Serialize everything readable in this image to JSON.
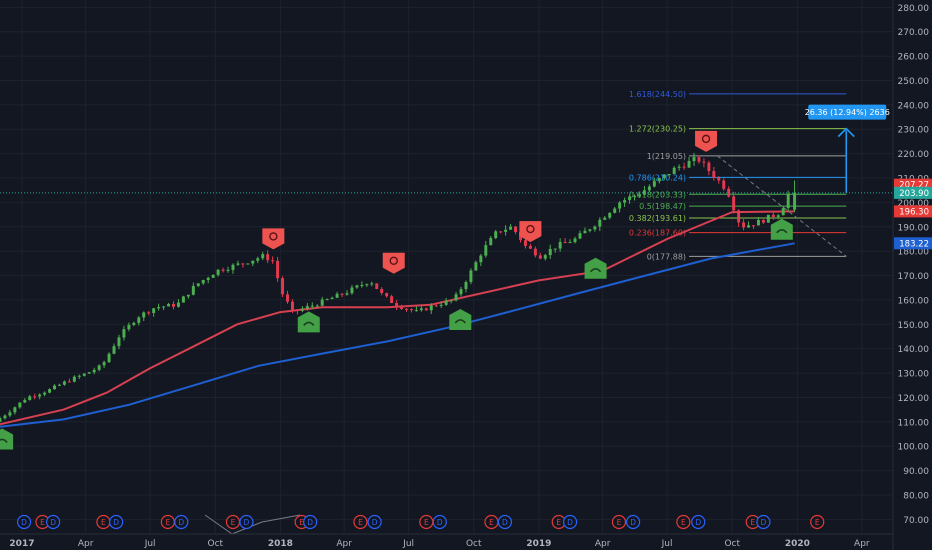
{
  "chart_data": {
    "type": "candlestick",
    "title": "",
    "xlabel": "",
    "ylabel": "",
    "xlim": [
      "2016-12-01",
      "2020-05-15"
    ],
    "ylim": [
      64,
      283
    ],
    "x_ticks": [
      {
        "label": "2017",
        "date": "2017-01-01",
        "bold": true
      },
      {
        "label": "Apr",
        "date": "2017-04-01"
      },
      {
        "label": "Jul",
        "date": "2017-07-01"
      },
      {
        "label": "Oct",
        "date": "2017-10-01"
      },
      {
        "label": "2018",
        "date": "2018-01-01",
        "bold": true
      },
      {
        "label": "Apr",
        "date": "2018-04-01"
      },
      {
        "label": "Jul",
        "date": "2018-07-01"
      },
      {
        "label": "Oct",
        "date": "2018-10-01"
      },
      {
        "label": "2019",
        "date": "2019-01-01",
        "bold": true
      },
      {
        "label": "Apr",
        "date": "2019-04-01"
      },
      {
        "label": "Jul",
        "date": "2019-07-01"
      },
      {
        "label": "Oct",
        "date": "2019-10-01"
      },
      {
        "label": "2020",
        "date": "2020-01-01",
        "bold": true
      },
      {
        "label": "Apr",
        "date": "2020-04-01"
      }
    ],
    "y_ticks": [
      "70.00",
      "80.00",
      "90.00",
      "100.00",
      "110.00",
      "120.00",
      "130.00",
      "140.00",
      "150.00",
      "160.00",
      "170.00",
      "180.00",
      "190.00",
      "200.00",
      "210.00",
      "220.00",
      "230.00",
      "240.00",
      "250.00",
      "260.00",
      "270.00",
      "280.00"
    ],
    "price_anchors": [
      [
        "2016-12-01",
        110
      ],
      [
        "2016-12-20",
        114
      ],
      [
        "2017-01-15",
        120
      ],
      [
        "2017-02-15",
        123
      ],
      [
        "2017-03-15",
        127
      ],
      [
        "2017-04-10",
        130
      ],
      [
        "2017-05-01",
        133
      ],
      [
        "2017-05-25",
        145
      ],
      [
        "2017-06-20",
        153
      ],
      [
        "2017-07-15",
        157
      ],
      [
        "2017-08-15",
        158
      ],
      [
        "2017-09-10",
        166
      ],
      [
        "2017-10-10",
        172
      ],
      [
        "2017-11-15",
        175
      ],
      [
        "2017-12-15",
        178
      ],
      [
        "2017-12-28",
        176
      ],
      [
        "2018-01-10",
        163
      ],
      [
        "2018-01-25",
        155
      ],
      [
        "2018-02-15",
        157
      ],
      [
        "2018-03-15",
        160
      ],
      [
        "2018-04-10",
        163
      ],
      [
        "2018-05-15",
        168
      ],
      [
        "2018-06-01",
        162
      ],
      [
        "2018-06-20",
        158
      ],
      [
        "2018-07-20",
        155
      ],
      [
        "2018-08-15",
        158
      ],
      [
        "2018-09-10",
        160
      ],
      [
        "2018-10-01",
        170
      ],
      [
        "2018-10-20",
        180
      ],
      [
        "2018-11-10",
        188
      ],
      [
        "2018-12-01",
        190
      ],
      [
        "2018-12-20",
        182
      ],
      [
        "2019-01-10",
        178
      ],
      [
        "2019-02-01",
        182
      ],
      [
        "2019-03-01",
        185
      ],
      [
        "2019-04-01",
        192
      ],
      [
        "2019-05-01",
        200
      ],
      [
        "2019-06-01",
        204
      ],
      [
        "2019-06-20",
        208
      ],
      [
        "2019-07-20",
        214
      ],
      [
        "2019-08-20",
        218
      ],
      [
        "2019-09-15",
        210
      ],
      [
        "2019-10-01",
        205
      ],
      [
        "2019-10-20",
        190
      ],
      [
        "2019-11-15",
        192
      ],
      [
        "2019-12-15",
        196
      ],
      [
        "2019-12-27",
        203.9
      ]
    ],
    "last_candle": {
      "date": "2019-12-28",
      "open": 197,
      "high": 209,
      "low": 196,
      "close": 203.9
    },
    "series": [
      {
        "color": "#d64051",
        "points": [
          [
            "2016-12-01",
            109
          ],
          [
            "2017-03-01",
            115
          ],
          [
            "2017-05-01",
            122
          ],
          [
            "2017-07-01",
            132
          ],
          [
            "2017-09-01",
            141
          ],
          [
            "2017-11-01",
            150
          ],
          [
            "2018-01-01",
            155
          ],
          [
            "2018-03-01",
            157
          ],
          [
            "2018-06-01",
            157
          ],
          [
            "2018-08-01",
            158
          ],
          [
            "2018-10-01",
            162
          ],
          [
            "2019-01-01",
            168
          ],
          [
            "2019-04-01",
            172
          ],
          [
            "2019-07-01",
            185
          ],
          [
            "2019-10-01",
            196
          ],
          [
            "2019-12-28",
            196.3
          ]
        ]
      },
      {
        "color": "#1e5fd1",
        "points": [
          [
            "2016-12-01",
            108
          ],
          [
            "2017-03-01",
            111
          ],
          [
            "2017-06-01",
            117
          ],
          [
            "2017-09-01",
            125
          ],
          [
            "2017-12-01",
            133
          ],
          [
            "2018-03-01",
            138
          ],
          [
            "2018-06-01",
            143
          ],
          [
            "2018-09-01",
            149
          ],
          [
            "2018-12-01",
            156
          ],
          [
            "2019-03-01",
            163
          ],
          [
            "2019-06-01",
            170
          ],
          [
            "2019-09-01",
            177
          ],
          [
            "2019-12-28",
            183.22
          ]
        ]
      }
    ],
    "fib_levels": [
      {
        "label": "1.618(244.50)",
        "value": 244.5,
        "color": "#2e5bd8"
      },
      {
        "label": "1.272(230.25)",
        "value": 230.25,
        "color": "#8bc34a"
      },
      {
        "label": "1(219.05)",
        "value": 219.05,
        "color": "#9e9e9e"
      },
      {
        "label": "0.786(210.24)",
        "value": 210.24,
        "color": "#2196f3"
      },
      {
        "label": "0.618(203.33)",
        "value": 203.33,
        "color": "#4caf50"
      },
      {
        "label": "0.5(198.47)",
        "value": 198.47,
        "color": "#4caf50"
      },
      {
        "label": "0.382(193.61)",
        "value": 193.61,
        "color": "#8bc34a"
      },
      {
        "label": "0.236(187.60)",
        "value": 187.6,
        "color": "#e53935"
      },
      {
        "label": "0(177.88)",
        "value": 177.88,
        "color": "#9e9e9e"
      }
    ],
    "fib_date_range": [
      "2019-08-01",
      "2020-03-10"
    ],
    "projection": {
      "label": "26.36 (12.94%) 2636",
      "from": 203.9,
      "to": 230.25,
      "date": "2020-03-10"
    },
    "price_tags": [
      {
        "label": "207.27",
        "value": 207.27,
        "color": "#e53935"
      },
      {
        "label": "203.90",
        "value": 203.9,
        "color": "#26a69a"
      },
      {
        "label": "196.30",
        "value": 196.3,
        "color": "#e53935"
      },
      {
        "label": "183.22",
        "value": 183.22,
        "color": "#1e5fd1"
      }
    ],
    "current_price": 203.9,
    "bull_markers": [
      [
        "2016-12-04",
        104
      ],
      [
        "2018-02-10",
        152
      ],
      [
        "2018-09-12",
        153
      ],
      [
        "2019-03-22",
        174
      ],
      [
        "2019-12-10",
        190
      ]
    ],
    "bear_markers": [
      [
        "2017-12-22",
        184
      ],
      [
        "2018-06-10",
        174
      ],
      [
        "2018-12-20",
        187
      ],
      [
        "2019-08-25",
        224
      ]
    ],
    "events": [
      [
        "D",
        "2017-01-04"
      ],
      [
        "E",
        "2017-01-30"
      ],
      [
        "D",
        "2017-02-14"
      ],
      [
        "E",
        "2017-04-26"
      ],
      [
        "D",
        "2017-05-14"
      ],
      [
        "E",
        "2017-07-26"
      ],
      [
        "D",
        "2017-08-14"
      ],
      [
        "E",
        "2017-10-26"
      ],
      [
        "D",
        "2017-11-14"
      ],
      [
        "E",
        "2018-01-31"
      ],
      [
        "D",
        "2018-02-12"
      ],
      [
        "E",
        "2018-04-24"
      ],
      [
        "D",
        "2018-05-14"
      ],
      [
        "E",
        "2018-07-26"
      ],
      [
        "D",
        "2018-08-14"
      ],
      [
        "E",
        "2018-10-26"
      ],
      [
        "D",
        "2018-11-14"
      ],
      [
        "E",
        "2019-01-29"
      ],
      [
        "D",
        "2019-02-14"
      ],
      [
        "E",
        "2019-04-24"
      ],
      [
        "D",
        "2019-05-14"
      ],
      [
        "E",
        "2019-07-24"
      ],
      [
        "D",
        "2019-08-14"
      ],
      [
        "E",
        "2019-10-30"
      ],
      [
        "D",
        "2019-11-14"
      ],
      [
        "E",
        "2020-01-29"
      ]
    ]
  }
}
